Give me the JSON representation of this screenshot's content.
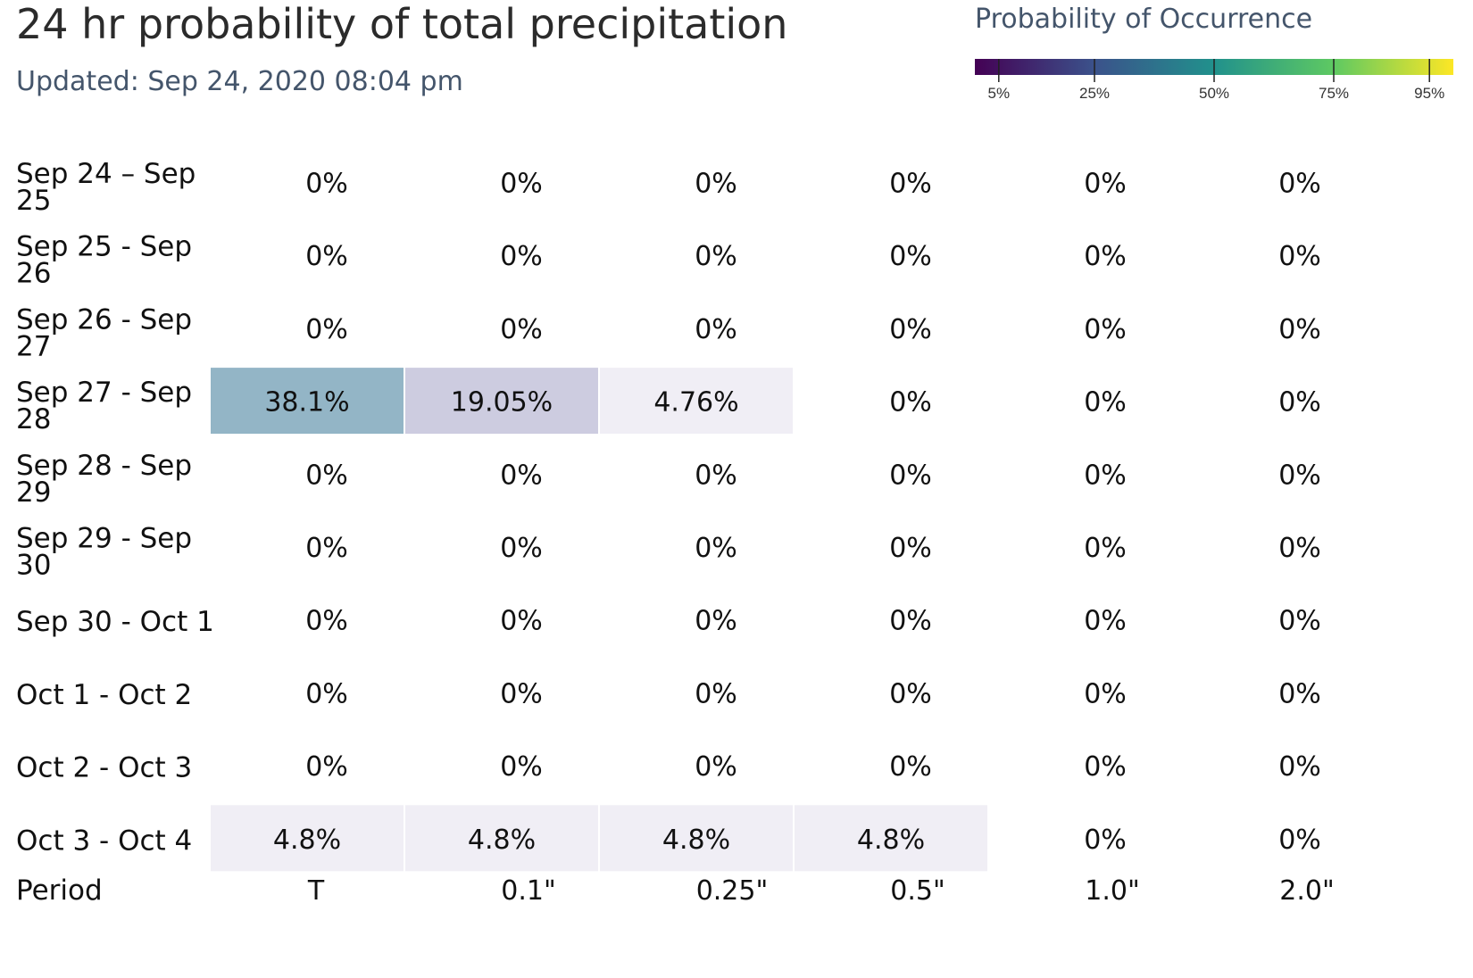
{
  "header": {
    "title": "24 hr probability of total precipitation",
    "updated": "Updated: Sep 24, 2020 08:04 pm"
  },
  "legend": {
    "title": "Probability of Occurrence",
    "ticks": [
      {
        "value": 5,
        "label": "5%"
      },
      {
        "value": 25,
        "label": "25%"
      },
      {
        "value": 50,
        "label": "50%"
      },
      {
        "value": 75,
        "label": "75%"
      },
      {
        "value": 95,
        "label": "95%"
      }
    ],
    "colors": [
      "#440154",
      "#3b528b",
      "#21918c",
      "#5ec962",
      "#fde725"
    ]
  },
  "chart_data": {
    "type": "heatmap",
    "title": "24 hr probability of total precipitation",
    "subtitle": "Updated: Sep 24, 2020 08:04 pm",
    "xlabel": "Period",
    "x_categories": [
      "T",
      "0.1\"",
      "0.25\"",
      "0.5\"",
      "1.0\"",
      "2.0\""
    ],
    "y_categories": [
      "Sep 24 – Sep 25",
      "Sep 25 - Sep 26",
      "Sep 26 - Sep 27",
      "Sep 27 - Sep 28",
      "Sep 28 - Sep 29",
      "Sep 29 - Sep 30",
      "Sep 30 - Oct 1",
      "Oct 1 - Oct 2",
      "Oct 2 - Oct 3",
      "Oct 3 - Oct 4"
    ],
    "values": [
      [
        0,
        0,
        0,
        0,
        0,
        0
      ],
      [
        0,
        0,
        0,
        0,
        0,
        0
      ],
      [
        0,
        0,
        0,
        0,
        0,
        0
      ],
      [
        38.1,
        19.05,
        4.76,
        0,
        0,
        0
      ],
      [
        0,
        0,
        0,
        0,
        0,
        0
      ],
      [
        0,
        0,
        0,
        0,
        0,
        0
      ],
      [
        0,
        0,
        0,
        0,
        0,
        0
      ],
      [
        0,
        0,
        0,
        0,
        0,
        0
      ],
      [
        0,
        0,
        0,
        0,
        0,
        0
      ],
      [
        4.8,
        4.8,
        4.8,
        4.8,
        0,
        0
      ]
    ],
    "labels": [
      [
        "0%",
        "0%",
        "0%",
        "0%",
        "0%",
        "0%"
      ],
      [
        "0%",
        "0%",
        "0%",
        "0%",
        "0%",
        "0%"
      ],
      [
        "0%",
        "0%",
        "0%",
        "0%",
        "0%",
        "0%"
      ],
      [
        "38.1%",
        "19.05%",
        "4.76%",
        "0%",
        "0%",
        "0%"
      ],
      [
        "0%",
        "0%",
        "0%",
        "0%",
        "0%",
        "0%"
      ],
      [
        "0%",
        "0%",
        "0%",
        "0%",
        "0%",
        "0%"
      ],
      [
        "0%",
        "0%",
        "0%",
        "0%",
        "0%",
        "0%"
      ],
      [
        "0%",
        "0%",
        "0%",
        "0%",
        "0%",
        "0%"
      ],
      [
        "0%",
        "0%",
        "0%",
        "0%",
        "0%",
        "0%"
      ],
      [
        "4.8%",
        "4.8%",
        "4.8%",
        "4.8%",
        "0%",
        "0%"
      ]
    ],
    "cell_colors": [
      [
        "",
        "",
        "",
        "",
        "",
        ""
      ],
      [
        "",
        "",
        "",
        "",
        "",
        ""
      ],
      [
        "",
        "",
        "",
        "",
        "",
        ""
      ],
      [
        "#93b5c6",
        "#cdcce0",
        "#f0eef5",
        "",
        "",
        ""
      ],
      [
        "",
        "",
        "",
        "",
        "",
        ""
      ],
      [
        "",
        "",
        "",
        "",
        "",
        ""
      ],
      [
        "",
        "",
        "",
        "",
        "",
        ""
      ],
      [
        "",
        "",
        "",
        "",
        "",
        ""
      ],
      [
        "",
        "",
        "",
        "",
        "",
        ""
      ],
      [
        "#f0eef5",
        "#f0eef5",
        "#f0eef5",
        "#f0eef5",
        "",
        ""
      ]
    ]
  }
}
